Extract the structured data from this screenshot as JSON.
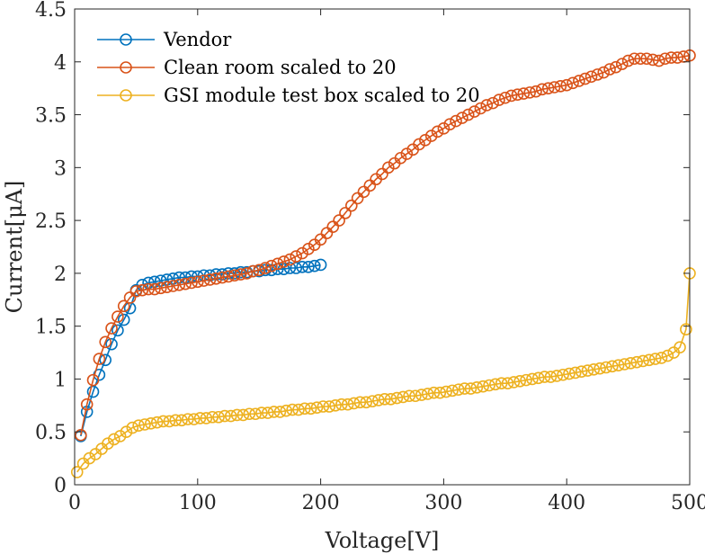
{
  "chart_data": {
    "type": "line",
    "xlabel": "Voltage[V]",
    "ylabel": "Current[μA]",
    "xlim": [
      0,
      500
    ],
    "ylim": [
      0,
      4.5
    ],
    "xticks": [
      0,
      100,
      200,
      300,
      400,
      500
    ],
    "yticks": [
      0,
      0.5,
      1,
      1.5,
      2,
      2.5,
      3,
      3.5,
      4,
      4.5
    ],
    "ytick_labels": [
      "0",
      "0.5",
      "1",
      "1.5",
      "2",
      "2.5",
      "3",
      "3.5",
      "4",
      "4.5"
    ],
    "grid": false,
    "legend_position": "top-left",
    "markers": "open-circle",
    "series": [
      {
        "name": "Vendor",
        "color": "#0072BD",
        "x": [
          5,
          10,
          15,
          20,
          25,
          30,
          35,
          40,
          45,
          50,
          55,
          60,
          65,
          70,
          75,
          80,
          85,
          90,
          95,
          100,
          105,
          110,
          115,
          120,
          125,
          130,
          135,
          140,
          145,
          150,
          155,
          160,
          165,
          170,
          175,
          180,
          185,
          190,
          195,
          200
        ],
        "y": [
          0.46,
          0.69,
          0.88,
          1.04,
          1.18,
          1.33,
          1.46,
          1.56,
          1.67,
          1.84,
          1.89,
          1.91,
          1.92,
          1.93,
          1.94,
          1.95,
          1.96,
          1.96,
          1.97,
          1.97,
          1.98,
          1.98,
          1.99,
          1.99,
          2.0,
          2.0,
          2.01,
          2.01,
          2.02,
          2.02,
          2.03,
          2.03,
          2.04,
          2.04,
          2.05,
          2.05,
          2.06,
          2.06,
          2.07,
          2.08
        ]
      },
      {
        "name": "Clean room scaled to 20",
        "color": "#D95319",
        "x": [
          5,
          10,
          15,
          20,
          25,
          30,
          35,
          40,
          45,
          50,
          55,
          60,
          65,
          70,
          75,
          80,
          85,
          90,
          95,
          100,
          105,
          110,
          115,
          120,
          125,
          130,
          135,
          140,
          145,
          150,
          155,
          160,
          165,
          170,
          175,
          180,
          185,
          190,
          195,
          200,
          205,
          210,
          215,
          220,
          225,
          230,
          235,
          240,
          245,
          250,
          255,
          260,
          265,
          270,
          275,
          280,
          285,
          290,
          295,
          300,
          305,
          310,
          315,
          320,
          325,
          330,
          335,
          340,
          345,
          350,
          355,
          360,
          365,
          370,
          375,
          380,
          385,
          390,
          395,
          400,
          405,
          410,
          415,
          420,
          425,
          430,
          435,
          440,
          445,
          450,
          455,
          460,
          465,
          470,
          475,
          480,
          485,
          490,
          495,
          500
        ],
        "y": [
          0.47,
          0.76,
          0.99,
          1.19,
          1.35,
          1.48,
          1.59,
          1.69,
          1.77,
          1.83,
          1.84,
          1.85,
          1.85,
          1.86,
          1.87,
          1.88,
          1.89,
          1.9,
          1.91,
          1.92,
          1.93,
          1.94,
          1.95,
          1.96,
          1.97,
          1.98,
          1.99,
          2.0,
          2.02,
          2.03,
          2.05,
          2.07,
          2.09,
          2.11,
          2.13,
          2.16,
          2.19,
          2.23,
          2.27,
          2.32,
          2.38,
          2.44,
          2.5,
          2.57,
          2.64,
          2.71,
          2.77,
          2.83,
          2.89,
          2.94,
          3.0,
          3.04,
          3.09,
          3.13,
          3.17,
          3.22,
          3.26,
          3.3,
          3.34,
          3.37,
          3.41,
          3.44,
          3.47,
          3.5,
          3.53,
          3.56,
          3.59,
          3.61,
          3.64,
          3.66,
          3.68,
          3.69,
          3.7,
          3.71,
          3.72,
          3.74,
          3.75,
          3.76,
          3.77,
          3.78,
          3.8,
          3.82,
          3.84,
          3.86,
          3.88,
          3.9,
          3.93,
          3.95,
          3.98,
          4.01,
          4.03,
          4.03,
          4.03,
          4.02,
          4.01,
          4.03,
          4.04,
          4.04,
          4.05,
          4.06
        ]
      },
      {
        "name": "GSI module test box scaled to 20",
        "color": "#EDB120",
        "x": [
          2,
          7,
          12,
          17,
          22,
          27,
          32,
          37,
          42,
          47,
          52,
          57,
          62,
          67,
          72,
          77,
          82,
          87,
          92,
          97,
          102,
          107,
          112,
          117,
          122,
          127,
          132,
          137,
          142,
          147,
          152,
          157,
          162,
          167,
          172,
          177,
          182,
          187,
          192,
          197,
          202,
          207,
          212,
          217,
          222,
          227,
          232,
          237,
          242,
          247,
          252,
          257,
          262,
          267,
          272,
          277,
          282,
          287,
          292,
          297,
          302,
          307,
          312,
          317,
          322,
          327,
          332,
          337,
          342,
          347,
          352,
          357,
          362,
          367,
          372,
          377,
          382,
          387,
          392,
          397,
          402,
          407,
          412,
          417,
          422,
          427,
          432,
          437,
          442,
          447,
          452,
          457,
          462,
          467,
          472,
          477,
          482,
          487,
          492,
          497,
          500
        ],
        "y": [
          0.12,
          0.2,
          0.25,
          0.29,
          0.34,
          0.39,
          0.43,
          0.46,
          0.5,
          0.54,
          0.56,
          0.57,
          0.58,
          0.59,
          0.6,
          0.6,
          0.61,
          0.61,
          0.62,
          0.62,
          0.63,
          0.63,
          0.64,
          0.64,
          0.65,
          0.65,
          0.66,
          0.66,
          0.67,
          0.67,
          0.68,
          0.68,
          0.69,
          0.69,
          0.7,
          0.71,
          0.71,
          0.72,
          0.72,
          0.73,
          0.74,
          0.74,
          0.75,
          0.76,
          0.76,
          0.77,
          0.78,
          0.78,
          0.79,
          0.8,
          0.81,
          0.81,
          0.82,
          0.83,
          0.84,
          0.84,
          0.85,
          0.86,
          0.87,
          0.87,
          0.88,
          0.89,
          0.9,
          0.91,
          0.91,
          0.92,
          0.93,
          0.94,
          0.95,
          0.96,
          0.96,
          0.97,
          0.98,
          0.99,
          1.0,
          1.01,
          1.02,
          1.02,
          1.03,
          1.04,
          1.05,
          1.06,
          1.07,
          1.08,
          1.09,
          1.1,
          1.11,
          1.12,
          1.13,
          1.14,
          1.15,
          1.16,
          1.17,
          1.18,
          1.19,
          1.2,
          1.22,
          1.25,
          1.3,
          1.47,
          2.0
        ]
      }
    ]
  }
}
